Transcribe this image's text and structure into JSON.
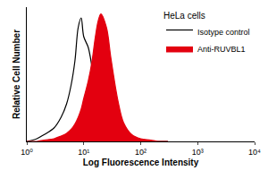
{
  "chart_data": {
    "type": "histogram_overlay",
    "legend_title": "HeLa cells",
    "x_label": "Log Fluorescence Intensity",
    "y_label": "Relative Cell Number",
    "x": [
      1,
      1.5,
      2,
      3,
      4,
      5,
      6,
      7,
      8,
      9,
      10,
      12,
      14,
      16,
      18,
      20,
      25,
      30,
      40,
      50,
      70,
      100,
      150,
      200,
      300
    ],
    "series": [
      {
        "name": "Isotype control",
        "color": "#ffffff",
        "values": [
          0,
          2,
          5,
          10,
          18,
          28,
          42,
          60,
          85,
          92,
          78,
          70,
          55,
          40,
          28,
          20,
          10,
          6,
          3,
          2,
          1,
          0.5,
          0,
          0,
          0
        ]
      },
      {
        "name": "Anti-RUVBL1",
        "color": "#e3000f",
        "values": [
          0,
          0,
          1,
          2,
          4,
          6,
          9,
          13,
          18,
          24,
          32,
          45,
          60,
          78,
          90,
          95,
          85,
          62,
          30,
          14,
          5,
          2,
          1,
          0,
          0
        ]
      }
    ],
    "log": "x",
    "xlim": [
      1,
      10000
    ],
    "xticks": [
      {
        "value": 1,
        "label": "10⁰"
      },
      {
        "value": 10,
        "label": "10¹"
      },
      {
        "value": 100,
        "label": "10²"
      },
      {
        "value": 1000,
        "label": "10³"
      },
      {
        "value": 10000,
        "label": "10⁴"
      }
    ],
    "ylim": [
      0,
      100
    ],
    "tick_labels": "x",
    "grid": false,
    "legend": "top right"
  }
}
